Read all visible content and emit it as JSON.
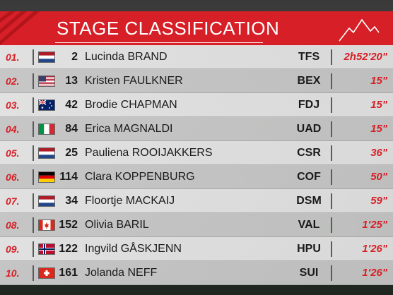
{
  "header": {
    "title": "STAGE CLASSIFICATION"
  },
  "rows": [
    {
      "pos": "01.",
      "flag": "NED",
      "num": "2",
      "name": "Lucinda BRAND",
      "team": "TFS",
      "time": "2h52'20\""
    },
    {
      "pos": "02.",
      "flag": "USA",
      "num": "13",
      "name": "Kristen FAULKNER",
      "team": "BEX",
      "time": "15\""
    },
    {
      "pos": "03.",
      "flag": "AUS",
      "num": "42",
      "name": "Brodie CHAPMAN",
      "team": "FDJ",
      "time": "15\""
    },
    {
      "pos": "04.",
      "flag": "ITA",
      "num": "84",
      "name": "Erica MAGNALDI",
      "team": "UAD",
      "time": "15\""
    },
    {
      "pos": "05.",
      "flag": "NED",
      "num": "25",
      "name": "Pauliena ROOIJAKKERS",
      "team": "CSR",
      "time": "36\""
    },
    {
      "pos": "06.",
      "flag": "GER",
      "num": "114",
      "name": "Clara KOPPENBURG",
      "team": "COF",
      "time": "50\""
    },
    {
      "pos": "07.",
      "flag": "NED",
      "num": "34",
      "name": "Floortje MACKAIJ",
      "team": "DSM",
      "time": "59\""
    },
    {
      "pos": "08.",
      "flag": "CAN",
      "num": "152",
      "name": "Olivia BARIL",
      "team": "VAL",
      "time": "1'25\""
    },
    {
      "pos": "09.",
      "flag": "NOR",
      "num": "122",
      "name": "Ingvild GÅSKJENN",
      "team": "HPU",
      "time": "1'26\""
    },
    {
      "pos": "10.",
      "flag": "SUI",
      "num": "161",
      "name": "Jolanda NEFF",
      "team": "SUI",
      "time": "1'26\""
    }
  ]
}
